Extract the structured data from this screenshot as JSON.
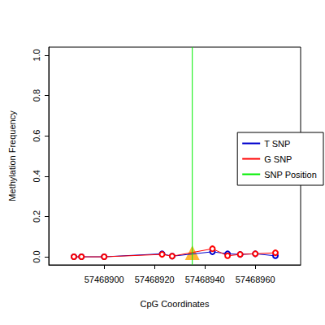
{
  "chart_data": {
    "type": "line",
    "x_label": "CpG Coordinates",
    "y_label": "Methylation Frequency",
    "x": [
      57468888,
      57468891,
      57468900,
      57468923,
      57468927,
      57468943,
      57468949,
      57468954,
      57468960,
      57468968
    ],
    "series": [
      {
        "name": "T SNP",
        "color": "#0000cd",
        "marker": "open_circle",
        "values": [
          0,
          0,
          0,
          0.015,
          0.003,
          0.025,
          0.015,
          0.012,
          0.015,
          0.005
        ]
      },
      {
        "name": "G SNP",
        "color": "#ff0000",
        "marker": "open_circle",
        "values": [
          0,
          0,
          0,
          0.012,
          0.003,
          0.04,
          0.005,
          0.012,
          0.015,
          0.02
        ]
      }
    ],
    "snp_position": {
      "name": "SNP Position",
      "x": 57468935,
      "color": "#00ee00"
    },
    "snp_marker": {
      "x": 57468935,
      "y": 0.02,
      "color": "#ffa500",
      "marker": "triangle"
    },
    "xlim": [
      57468878,
      57468978
    ],
    "xticks": [
      57468900,
      57468920,
      57468940,
      57468960
    ],
    "ylim": [
      -0.04,
      1.04
    ],
    "yticks": [
      {
        "value": 0,
        "label": "0.0"
      },
      {
        "value": 0.2,
        "label": "0.2"
      },
      {
        "value": 0.4,
        "label": "0.4"
      },
      {
        "value": 0.6,
        "label": "0.6"
      },
      {
        "value": 0.8,
        "label": "0.8"
      },
      {
        "value": 1,
        "label": "1.0"
      }
    ],
    "legend": "right",
    "grid": false
  }
}
